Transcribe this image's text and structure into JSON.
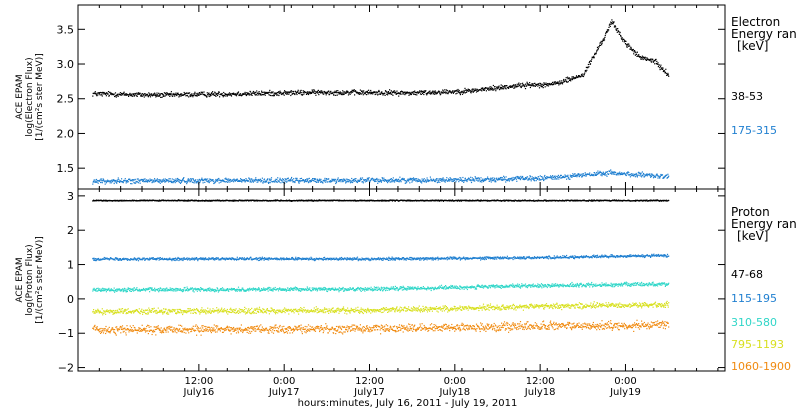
{
  "chart_data": [
    {
      "type": "scatter",
      "panel": "electron",
      "ylabel": [
        "ACE EPAM",
        "log(Electron Flux)",
        "[1/(cm²s ster MeV)]"
      ],
      "ylim": [
        1.2,
        3.85
      ],
      "y_ticks": [
        1.5,
        2.0,
        2.5,
        3.0,
        3.5
      ],
      "y_tick_labels": [
        "1.5",
        "2.0",
        "2.5",
        "3.0",
        "3.5"
      ],
      "legend_title": [
        "Electron",
        "Energy ran",
        "[keV]"
      ],
      "legend_placement": "right",
      "series": [
        {
          "name": "38-53",
          "color": "#000000",
          "values": [
            {
              "x": "2011-07-15 21:00",
              "y": 2.58
            },
            {
              "x": "2011-07-16 06:00",
              "y": 2.56
            },
            {
              "x": "2011-07-16 18:00",
              "y": 2.58
            },
            {
              "x": "2011-07-17 06:00",
              "y": 2.6
            },
            {
              "x": "2011-07-17 18:00",
              "y": 2.59
            },
            {
              "x": "2011-07-18 02:00",
              "y": 2.62
            },
            {
              "x": "2011-07-18 09:00",
              "y": 2.7
            },
            {
              "x": "2011-07-18 14:00",
              "y": 2.72
            },
            {
              "x": "2011-07-18 18:00",
              "y": 2.85
            },
            {
              "x": "2011-07-18 21:00",
              "y": 3.4
            },
            {
              "x": "2011-07-18 22:00",
              "y": 3.62
            },
            {
              "x": "2011-07-19 00:00",
              "y": 3.3
            },
            {
              "x": "2011-07-19 02:00",
              "y": 3.1
            },
            {
              "x": "2011-07-19 04:00",
              "y": 3.05
            },
            {
              "x": "2011-07-19 06:00",
              "y": 2.85
            }
          ]
        },
        {
          "name": "175-315",
          "color": "#1f7fd0",
          "values": [
            {
              "x": "2011-07-15 21:00",
              "y": 1.32
            },
            {
              "x": "2011-07-16 12:00",
              "y": 1.33
            },
            {
              "x": "2011-07-17 06:00",
              "y": 1.33
            },
            {
              "x": "2011-07-18 00:00",
              "y": 1.34
            },
            {
              "x": "2011-07-18 12:00",
              "y": 1.36
            },
            {
              "x": "2011-07-18 22:00",
              "y": 1.44
            },
            {
              "x": "2011-07-19 06:00",
              "y": 1.38
            }
          ]
        }
      ]
    },
    {
      "type": "scatter",
      "panel": "proton",
      "ylabel": [
        "ACE EPAM",
        "log(Proton Flux)",
        "[1/(cm²s ster MeV)]"
      ],
      "ylim": [
        -2.1,
        3.2
      ],
      "y_ticks": [
        -2,
        -1,
        0,
        1,
        2,
        3
      ],
      "y_tick_labels": [
        "−2",
        "−1",
        "0",
        "1",
        "2",
        "3"
      ],
      "xlabel": "hours:minutes, July 16, 2011 - July 19, 2011",
      "x_ticks": [
        {
          "time": "12:00",
          "date": "July16",
          "at": "2011-07-16 12:00"
        },
        {
          "time": "0:00",
          "date": "July17",
          "at": "2011-07-17 00:00"
        },
        {
          "time": "12:00",
          "date": "July17",
          "at": "2011-07-17 12:00"
        },
        {
          "time": "0:00",
          "date": "July18",
          "at": "2011-07-18 00:00"
        },
        {
          "time": "12:00",
          "date": "July18",
          "at": "2011-07-18 12:00"
        },
        {
          "time": "0:00",
          "date": "July19",
          "at": "2011-07-19 00:00"
        }
      ],
      "xlim": [
        "2011-07-15 19:00",
        "2011-07-19 14:00"
      ],
      "legend_title": [
        "Proton",
        "Energy ran",
        "[keV]"
      ],
      "legend_placement": "right",
      "series": [
        {
          "name": "47-68",
          "color": "#000000",
          "values": [
            {
              "x": "2011-07-15 21:00",
              "y": 2.88
            },
            {
              "x": "2011-07-17 12:00",
              "y": 2.88
            },
            {
              "x": "2011-07-19 06:00",
              "y": 2.88
            }
          ]
        },
        {
          "name": "115-195",
          "color": "#1f7fd0",
          "values": [
            {
              "x": "2011-07-15 21:00",
              "y": 1.18
            },
            {
              "x": "2011-07-17 12:00",
              "y": 1.18
            },
            {
              "x": "2011-07-18 12:00",
              "y": 1.22
            },
            {
              "x": "2011-07-19 06:00",
              "y": 1.28
            }
          ]
        },
        {
          "name": "310-580",
          "color": "#2fd6c8",
          "values": [
            {
              "x": "2011-07-15 21:00",
              "y": 0.28
            },
            {
              "x": "2011-07-17 12:00",
              "y": 0.3
            },
            {
              "x": "2011-07-18 12:00",
              "y": 0.4
            },
            {
              "x": "2011-07-19 06:00",
              "y": 0.45
            }
          ]
        },
        {
          "name": "795-1193",
          "color": "#d8e020",
          "values": [
            {
              "x": "2011-07-15 21:00",
              "y": -0.35
            },
            {
              "x": "2011-07-17 12:00",
              "y": -0.32
            },
            {
              "x": "2011-07-18 12:00",
              "y": -0.2
            },
            {
              "x": "2011-07-19 06:00",
              "y": -0.15
            }
          ]
        },
        {
          "name": "1060-1900",
          "color": "#f08a10",
          "values": [
            {
              "x": "2011-07-15 21:00",
              "y": -0.88
            },
            {
              "x": "2011-07-17 12:00",
              "y": -0.85
            },
            {
              "x": "2011-07-18 12:00",
              "y": -0.78
            },
            {
              "x": "2011-07-19 06:00",
              "y": -0.75
            }
          ]
        }
      ]
    }
  ]
}
